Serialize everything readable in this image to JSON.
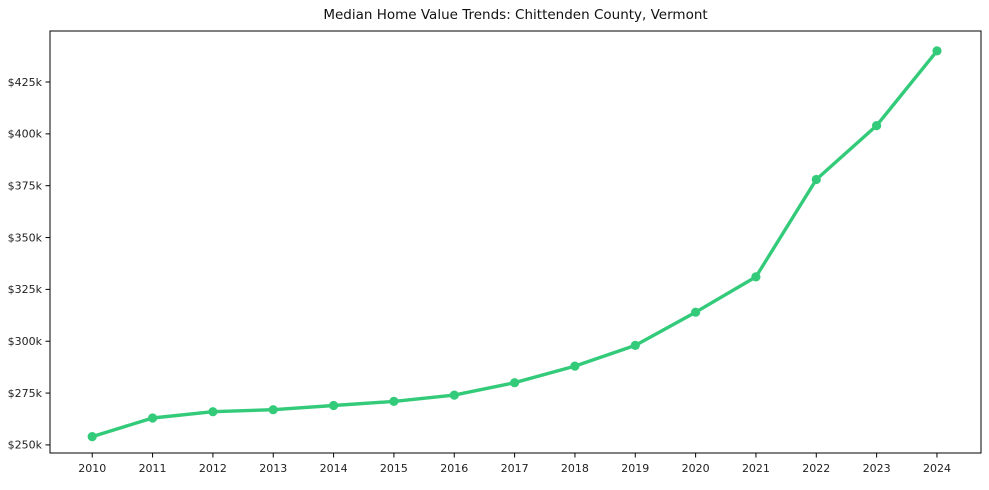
{
  "figure": {
    "background": "#ffffff"
  },
  "chart_data": {
    "type": "line",
    "title": "Median Home Value Trends: Chittenden County, Vermont",
    "series_name": "Median Home Value",
    "x": [
      2010,
      2011,
      2012,
      2013,
      2014,
      2015,
      2016,
      2017,
      2018,
      2019,
      2020,
      2021,
      2022,
      2023,
      2024
    ],
    "values": [
      254000,
      263000,
      266000,
      267000,
      269000,
      271000,
      274000,
      280000,
      288000,
      298000,
      314000,
      331000,
      378000,
      404000,
      440000
    ],
    "xtick_labels": [
      "2010",
      "2011",
      "2012",
      "2013",
      "2014",
      "2015",
      "2016",
      "2017",
      "2018",
      "2019",
      "2020",
      "2021",
      "2022",
      "2023",
      "2024"
    ],
    "yticks": [
      250000,
      275000,
      300000,
      325000,
      350000,
      375000,
      400000,
      425000
    ],
    "ytick_labels": [
      "$250k",
      "$275k",
      "$300k",
      "$325k",
      "$350k",
      "$375k",
      "$400k",
      "$425k"
    ],
    "xlabel": "",
    "ylabel": "",
    "xlim": [
      2009.3,
      2024.73
    ],
    "ylim": [
      246100,
      449600
    ],
    "grid": false,
    "legend": "none",
    "line_color": "#33cb7a",
    "marker_color": "#33cb7a",
    "axis_color": "#000000",
    "tick_text_color": "#222222",
    "line_width": 3.4,
    "marker_radius": 4.6
  }
}
